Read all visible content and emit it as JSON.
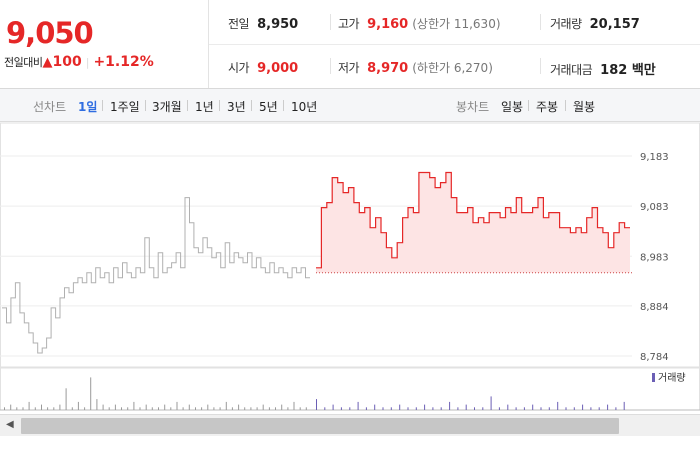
{
  "quote": {
    "price": "9,050",
    "change_label": "전일대비",
    "change_arrow": "▲",
    "change_value": "100",
    "change_pct": "+1.12%"
  },
  "stats": {
    "prev_close": {
      "label": "전일",
      "value": "8,950"
    },
    "high": {
      "label": "고가",
      "value": "9,160",
      "sub": "(상한가 11,630)"
    },
    "volume": {
      "label": "거래량",
      "value": "20,157"
    },
    "open": {
      "label": "시가",
      "value": "9,000"
    },
    "low": {
      "label": "저가",
      "value": "8,970",
      "sub": "(하한가 6,270)"
    },
    "trade_amount": {
      "label": "거래대금",
      "value": "182 백만"
    }
  },
  "toolbar": {
    "line_chart_label": "선차트",
    "line_periods": [
      "1일",
      "1주일",
      "3개월",
      "1년",
      "3년",
      "5년",
      "10년"
    ],
    "active_period": "1일",
    "candle_label": "봉차트",
    "candle_periods": [
      "일봉",
      "주봉",
      "월봉"
    ]
  },
  "colors": {
    "up": "#e52727",
    "accent": "#2f6de1",
    "prev_line": "#b0b0b0",
    "area_fill": "#fde4e4",
    "volume_today": "#6b5fb5",
    "volume_prev": "#9a9a9a"
  },
  "chart_data": {
    "type": "area",
    "y_axis": {
      "ticks": [
        "9,183",
        "9,083",
        "8,983",
        "8,884",
        "8,784"
      ],
      "min": 8784,
      "max": 9183
    },
    "baseline_prev_close": 8950,
    "volume_legend": "거래량",
    "series": [
      {
        "values": [
          8880,
          8850,
          8900,
          8930,
          8870,
          8850,
          8830,
          8810,
          8790,
          8800,
          8820,
          8880,
          8860,
          8900,
          8920,
          8910,
          8930,
          8940,
          8930,
          8950,
          8930,
          8960,
          8940,
          8950,
          8930,
          8960,
          8940,
          8970,
          8950,
          8940,
          8960,
          8950,
          9020,
          8960,
          8940,
          8990,
          8950,
          8960,
          8970,
          8990,
          8960,
          9100,
          9050,
          9000,
          8990,
          9020,
          9000,
          8980,
          8990,
          8960,
          9010,
          8970,
          8990,
          8980,
          8970,
          8990,
          8960,
          8980,
          8960,
          8950,
          8970,
          8950,
          8960,
          8950,
          8940,
          8960,
          8950,
          8960,
          8940
        ]
      },
      {
        "values": [
          8960,
          9080,
          9090,
          9140,
          9130,
          9110,
          9120,
          9090,
          9070,
          9080,
          9040,
          9060,
          9030,
          9000,
          8980,
          9010,
          9060,
          9080,
          9070,
          9150,
          9150,
          9140,
          9120,
          9130,
          9150,
          9100,
          9070,
          9070,
          9080,
          9050,
          9060,
          9050,
          9070,
          9070,
          9060,
          9080,
          9070,
          9100,
          9070,
          9070,
          9080,
          9100,
          9060,
          9070,
          9070,
          9040,
          9040,
          9030,
          9040,
          9030,
          9060,
          9080,
          9040,
          9030,
          9000,
          9030,
          9050,
          9040
        ]
      }
    ],
    "volume_bars_prev": [
      1,
      2,
      1,
      1,
      3,
      1,
      2,
      1,
      1,
      2,
      8,
      1,
      3,
      1,
      12,
      4,
      2,
      1,
      2,
      1,
      1,
      3,
      1,
      2,
      1,
      1,
      2,
      1,
      3,
      1,
      2,
      1,
      1,
      2,
      1,
      1,
      3,
      1,
      2,
      1,
      1,
      1,
      2,
      1,
      1,
      2,
      1,
      3,
      1,
      1
    ],
    "volume_bars_today": [
      4,
      1,
      2,
      1,
      1,
      3,
      1,
      2,
      1,
      1,
      2,
      1,
      1,
      2,
      1,
      1,
      3,
      1,
      2,
      1,
      1,
      5,
      1,
      2,
      1,
      1,
      2,
      1,
      1,
      3,
      1,
      1,
      2,
      1,
      1,
      2,
      1,
      3
    ]
  }
}
